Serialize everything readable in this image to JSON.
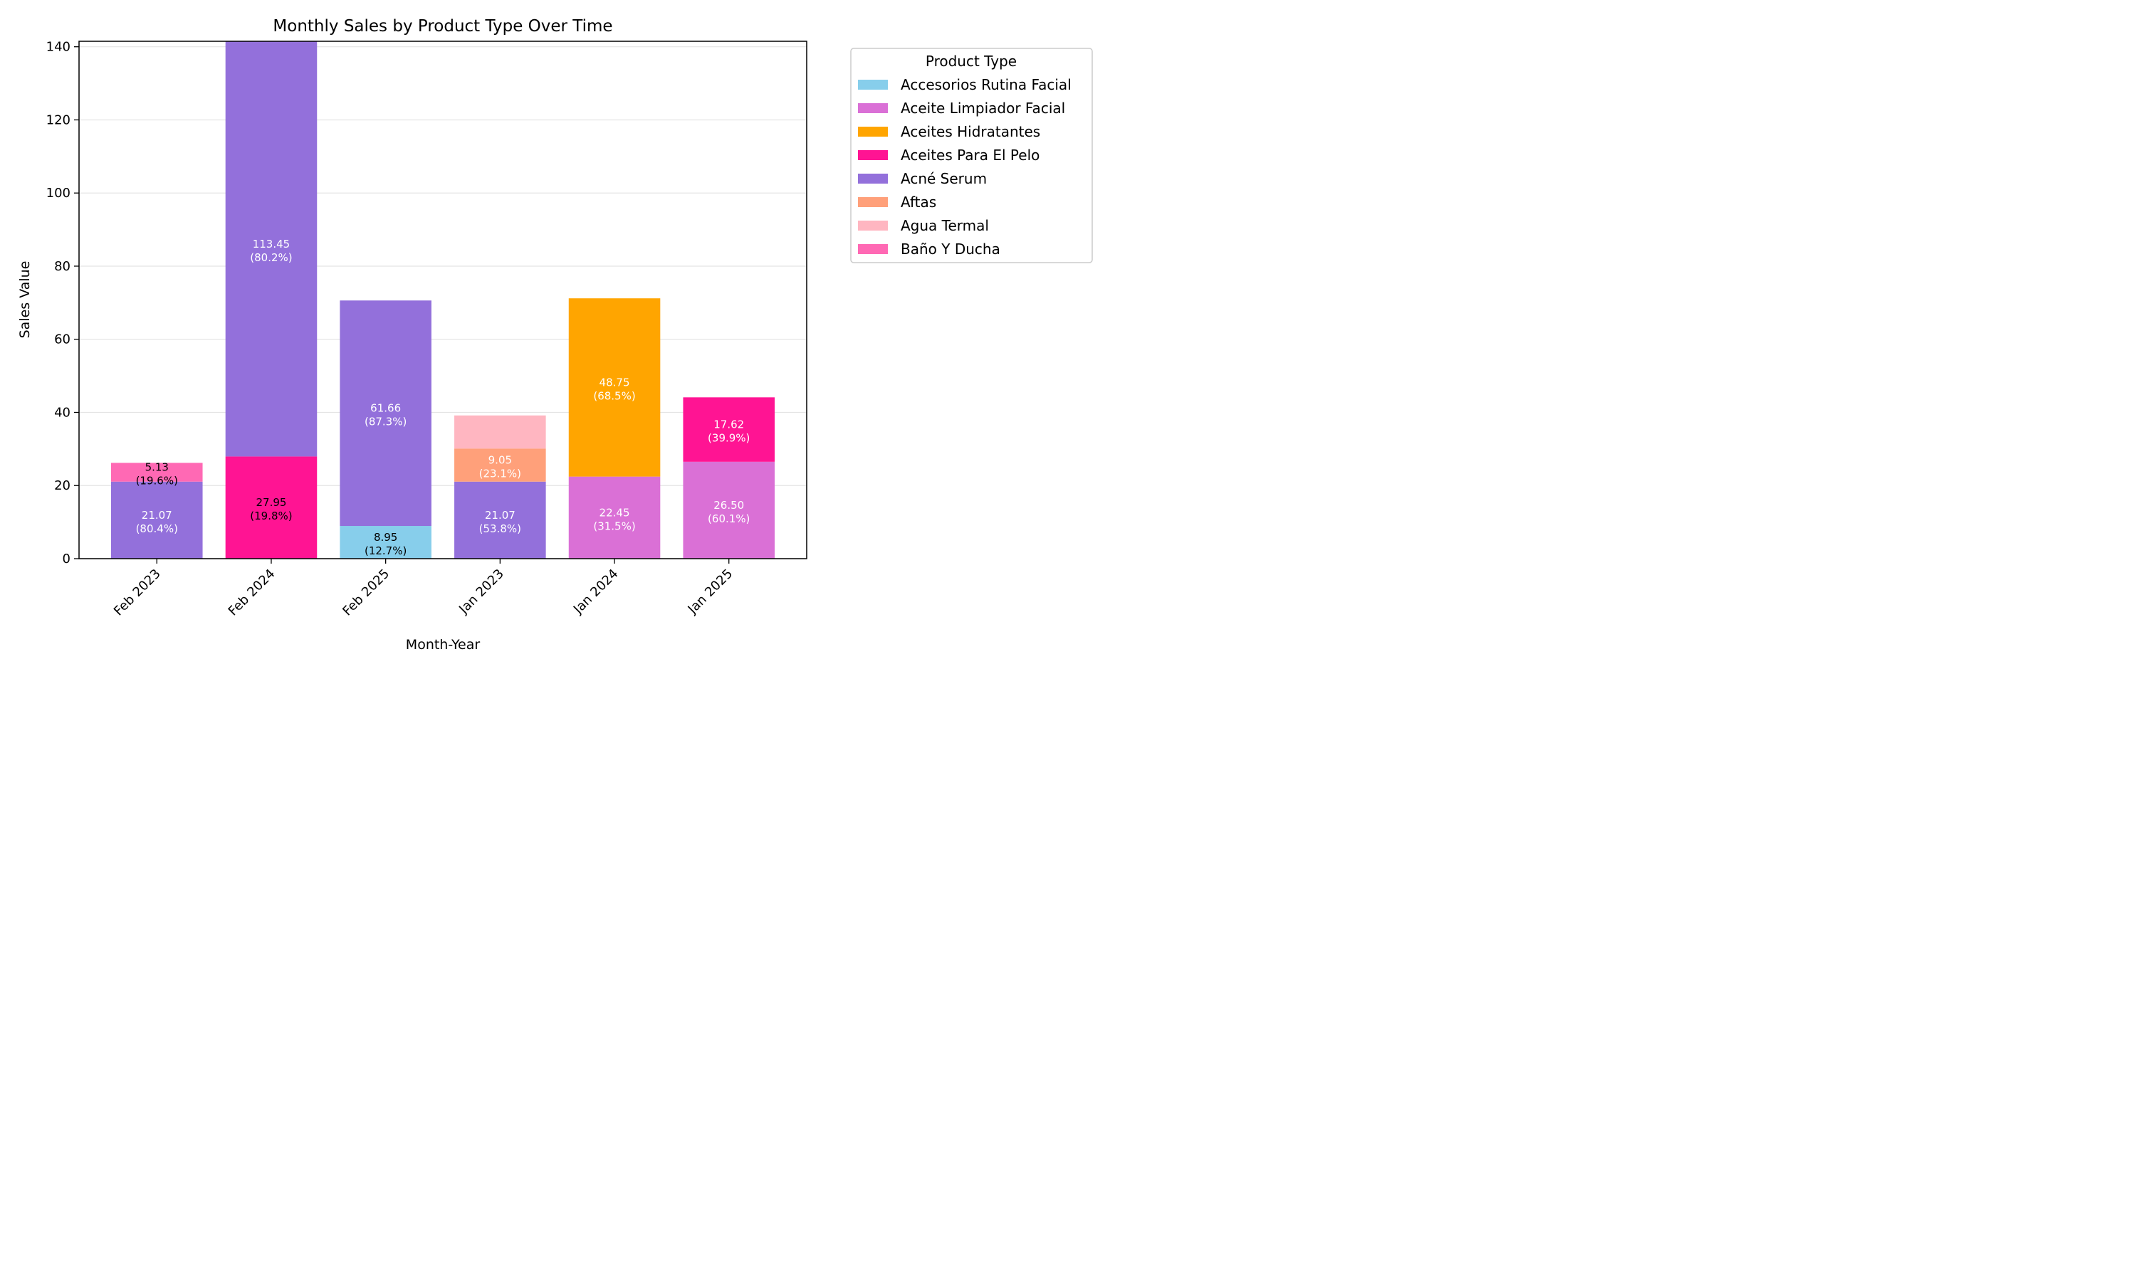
{
  "chart_data": {
    "type": "bar",
    "stacked": true,
    "title": "Monthly Sales by Product Type Over Time",
    "xlabel": "Month-Year",
    "ylabel": "Sales Value",
    "ylim": [
      0,
      141.5
    ],
    "yticks": [
      0,
      20,
      40,
      60,
      80,
      100,
      120,
      140
    ],
    "grid": "horizontal",
    "legend_title": "Product Type",
    "legend_position": "outside-top-right",
    "categories": [
      "Feb 2023",
      "Feb 2024",
      "Feb 2025",
      "Jan 2023",
      "Jan 2024",
      "Jan 2025"
    ],
    "legend": [
      {
        "name": "Accesorios Rutina Facial",
        "color": "#87ceeb"
      },
      {
        "name": "Aceite Limpiador Facial",
        "color": "#da70d6"
      },
      {
        "name": "Aceites Hidratantes",
        "color": "#ffa500"
      },
      {
        "name": "Aceites Para El Pelo",
        "color": "#ff1493"
      },
      {
        "name": "Acné Serum",
        "color": "#9370db"
      },
      {
        "name": "Aftas",
        "color": "#ffa07a"
      },
      {
        "name": "Agua Termal",
        "color": "#ffb6c1"
      },
      {
        "name": "Baño Y Ducha",
        "color": "#ff69b4"
      }
    ],
    "bars": [
      {
        "category": "Feb 2023",
        "segments": [
          {
            "series": "Acné Serum",
            "value": 21.07,
            "color": "#9370db",
            "label": "21.07\n(80.4%)",
            "label_color": "#ffffff"
          },
          {
            "series": "Baño Y Ducha",
            "value": 5.13,
            "color": "#ff69b4",
            "label": "5.13\n(19.6%)",
            "label_color": "#000000"
          }
        ]
      },
      {
        "category": "Feb 2024",
        "segments": [
          {
            "series": "Aceites Para El Pelo",
            "value": 27.95,
            "color": "#ff1493",
            "label": "27.95\n(19.8%)",
            "label_color": "#000000"
          },
          {
            "series": "Acné Serum",
            "value": 113.45,
            "color": "#9370db",
            "label": "113.45\n(80.2%)",
            "label_color": "#ffffff"
          }
        ]
      },
      {
        "category": "Feb 2025",
        "segments": [
          {
            "series": "Accesorios Rutina Facial",
            "value": 8.95,
            "color": "#87ceeb",
            "label": "8.95\n(12.7%)",
            "label_color": "#000000"
          },
          {
            "series": "Acné Serum",
            "value": 61.66,
            "color": "#9370db",
            "label": "61.66\n(87.3%)",
            "label_color": "#ffffff"
          }
        ]
      },
      {
        "category": "Jan 2023",
        "segments": [
          {
            "series": "Acné Serum",
            "value": 21.07,
            "color": "#9370db",
            "label": "21.07\n(53.8%)",
            "label_color": "#ffffff"
          },
          {
            "series": "Aftas",
            "value": 9.05,
            "color": "#ffa07a",
            "label": "9.05\n(23.1%)",
            "label_color": "#ffffff"
          },
          {
            "series": "Agua Termal",
            "value": 9.05,
            "color": "#ffb6c1",
            "label": "",
            "label_color": "#ffffff"
          }
        ]
      },
      {
        "category": "Jan 2024",
        "segments": [
          {
            "series": "Aceite Limpiador Facial",
            "value": 22.45,
            "color": "#da70d6",
            "label": "22.45\n(31.5%)",
            "label_color": "#ffffff"
          },
          {
            "series": "Aceites Hidratantes",
            "value": 48.75,
            "color": "#ffa500",
            "label": "48.75\n(68.5%)",
            "label_color": "#ffffff"
          }
        ]
      },
      {
        "category": "Jan 2025",
        "segments": [
          {
            "series": "Aceite Limpiador Facial",
            "value": 26.5,
            "color": "#da70d6",
            "label": "26.50\n(60.1%)",
            "label_color": "#ffffff"
          },
          {
            "series": "Aceites Para El Pelo",
            "value": 17.62,
            "color": "#ff1493",
            "label": "17.62\n(39.9%)",
            "label_color": "#ffffff"
          }
        ]
      }
    ]
  }
}
